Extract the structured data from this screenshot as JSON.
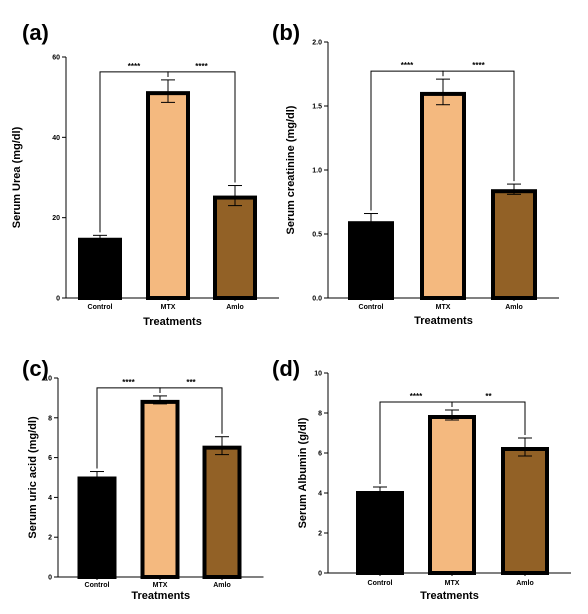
{
  "chart_data": [
    {
      "type": "bar",
      "panel": "(a)",
      "categories": [
        "Control",
        "MTX",
        "Amlo"
      ],
      "values": [
        15,
        51.5,
        25.5
      ],
      "errors": [
        0.6,
        2.8,
        2.5
      ],
      "ylabel": "Serum Urea (mg/dl)",
      "xlabel": "Treatments",
      "ylim": [
        0,
        60
      ],
      "yticks": [
        "0",
        "20",
        "40",
        "60"
      ],
      "significance": [
        {
          "from": 0,
          "to": 1,
          "label": "****"
        },
        {
          "from": 1,
          "to": 2,
          "label": "****"
        }
      ],
      "colors": [
        "#000000",
        "#f4b97f",
        "#926126"
      ]
    },
    {
      "type": "bar",
      "panel": "(b)",
      "categories": [
        "Control",
        "MTX",
        "Amlo"
      ],
      "values": [
        0.6,
        1.61,
        0.85
      ],
      "errors": [
        0.06,
        0.1,
        0.04
      ],
      "ylabel": "Serum creatinine (mg/dl)",
      "xlabel": "Treatments",
      "ylim": [
        0,
        2
      ],
      "yticks": [
        "0.0",
        "0.5",
        "1.0",
        "1.5",
        "2.0"
      ],
      "significance": [
        {
          "from": 0,
          "to": 1,
          "label": "****"
        },
        {
          "from": 1,
          "to": 2,
          "label": "****"
        }
      ],
      "colors": [
        "#000000",
        "#f4b97f",
        "#926126"
      ]
    },
    {
      "type": "bar",
      "panel": "(c)",
      "categories": [
        "Control",
        "MTX",
        "Amlo"
      ],
      "values": [
        5.05,
        8.9,
        6.6
      ],
      "errors": [
        0.25,
        0.2,
        0.45
      ],
      "ylabel": "Serum uric acid (mg/dl)",
      "xlabel": "Treatments",
      "ylim": [
        0,
        10
      ],
      "yticks": [
        "0",
        "2",
        "4",
        "6",
        "8",
        "10"
      ],
      "significance": [
        {
          "from": 0,
          "to": 1,
          "label": "****"
        },
        {
          "from": 1,
          "to": 2,
          "label": "***"
        }
      ],
      "colors": [
        "#000000",
        "#f4b97f",
        "#926126"
      ]
    },
    {
      "type": "bar",
      "panel": "(d)",
      "categories": [
        "Control",
        "MTX",
        "Amlo"
      ],
      "values": [
        4.1,
        7.9,
        6.3
      ],
      "errors": [
        0.2,
        0.25,
        0.45
      ],
      "ylabel": "Serum Albumin (g/dl)",
      "xlabel": "Treatments",
      "ylim": [
        0,
        10
      ],
      "yticks": [
        "0",
        "2",
        "4",
        "6",
        "8",
        "10"
      ],
      "significance": [
        {
          "from": 0,
          "to": 1,
          "label": "****"
        },
        {
          "from": 1,
          "to": 2,
          "label": "**"
        }
      ],
      "colors": [
        "#000000",
        "#f4b97f",
        "#926126"
      ]
    }
  ]
}
